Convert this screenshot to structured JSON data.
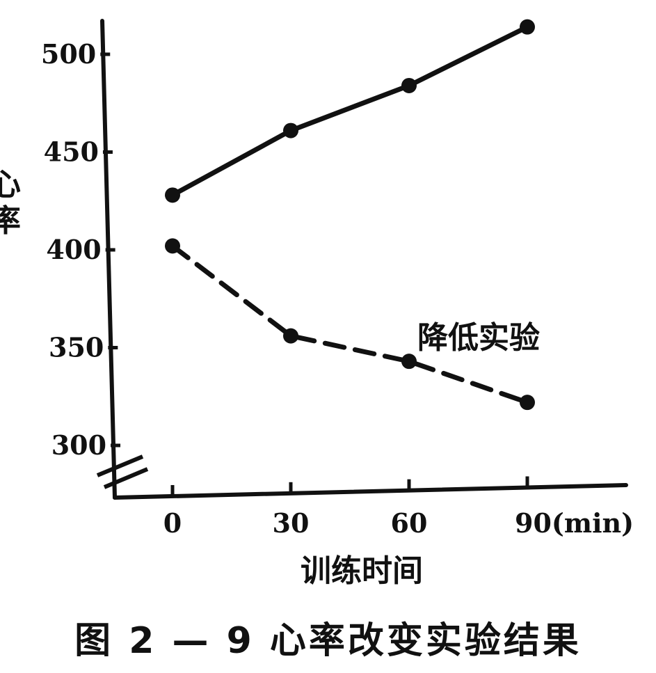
{
  "chart_data": {
    "type": "line",
    "caption": "图 2 — 9 心率改变实验结果",
    "xlabel": "训练时间",
    "ylabel": "心率",
    "x_ticks": [
      "0",
      "30",
      "60",
      "90(min)"
    ],
    "y_ticks": [
      "300",
      "350",
      "400",
      "450",
      "500"
    ],
    "x": [
      0,
      30,
      60,
      90
    ],
    "xlim": [
      -8,
      100
    ],
    "ylim": [
      280,
      520
    ],
    "axis_break": true,
    "grid": false,
    "series": [
      {
        "name": "",
        "style": "solid",
        "values": [
          428,
          461,
          484,
          514
        ]
      },
      {
        "name": "降低实验",
        "style": "dashed",
        "values": [
          402,
          356,
          343,
          322
        ]
      }
    ]
  }
}
